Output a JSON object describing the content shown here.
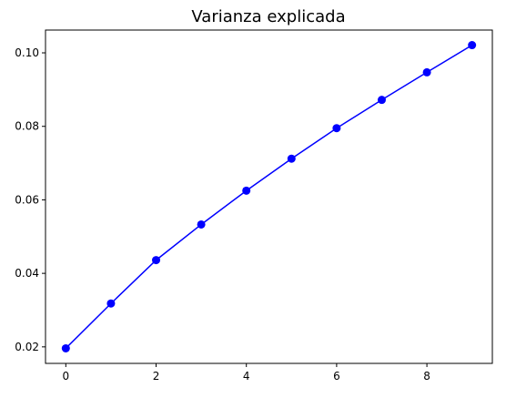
{
  "chart_data": {
    "type": "line",
    "title": "Varianza explicada",
    "xlabel": "",
    "ylabel": "",
    "x": [
      0,
      1,
      2,
      3,
      4,
      5,
      6,
      7,
      8,
      9
    ],
    "series": [
      {
        "values": [
          0.0196,
          0.0318,
          0.0436,
          0.0533,
          0.0625,
          0.0712,
          0.0795,
          0.0872,
          0.0947,
          0.1021
        ],
        "color": "#0000ff",
        "marker": "circle"
      }
    ],
    "xlim": [
      -0.45,
      9.45
    ],
    "ylim": [
      0.0155,
      0.1062
    ],
    "xticks": [
      0,
      2,
      4,
      6,
      8
    ],
    "xtick_labels": [
      "0",
      "2",
      "4",
      "6",
      "8"
    ],
    "yticks": [
      0.02,
      0.04,
      0.06,
      0.08,
      0.1
    ],
    "ytick_labels": [
      "0.02",
      "0.04",
      "0.06",
      "0.08",
      "0.10"
    ],
    "grid": false,
    "legend": null
  }
}
